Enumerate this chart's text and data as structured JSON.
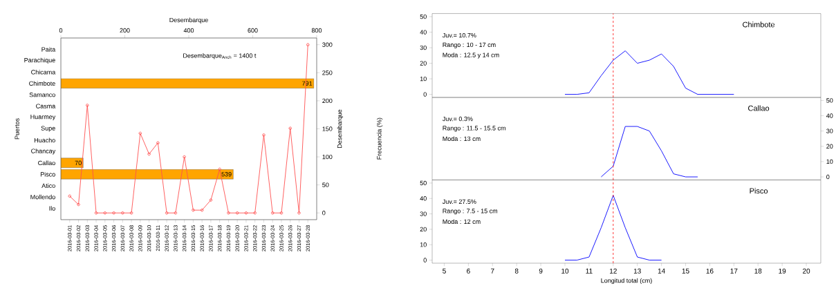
{
  "chart_data": [
    {
      "type": "bar",
      "orientation": "horizontal",
      "xlabel": "Desembarque",
      "ylabel": "Puertos",
      "categories": [
        "Paita",
        "Parachique",
        "Chicama",
        "Chimbote",
        "Samanco",
        "Casma",
        "Huarmey",
        "Supe",
        "Huacho",
        "Chancay",
        "Callao",
        "Pisco",
        "Atico",
        "Mollendo",
        "Ilo"
      ],
      "values": [
        null,
        null,
        null,
        791,
        null,
        null,
        null,
        null,
        null,
        null,
        70,
        539,
        null,
        null,
        null
      ],
      "color": "#ffa500",
      "data_labels": true,
      "xlim": [
        0,
        800
      ],
      "xticks": [
        0,
        200,
        400,
        600,
        800
      ],
      "annotations": [
        "Desembarque$_{Anch}$ = 1400 t"
      ]
    },
    {
      "type": "line",
      "y2label": "Desembarque",
      "categories": [
        "2016-03-01",
        "2016-03-02",
        "2016-03-03",
        "2016-03-04",
        "2016-03-05",
        "2016-03-06",
        "2016-03-07",
        "2016-03-08",
        "2016-03-09",
        "2016-03-10",
        "2016-03-11",
        "2016-03-12",
        "2016-03-13",
        "2016-03-14",
        "2016-03-15",
        "2016-03-16",
        "2016-03-17",
        "2016-03-18",
        "2016-03-19",
        "2016-03-20",
        "2016-03-21",
        "2016-03-22",
        "2016-03-23",
        "2016-03-24",
        "2016-03-25",
        "2016-03-26",
        "2016-03-27",
        "2016-03-28"
      ],
      "series": [
        {
          "color": "#ff5050",
          "axis": "y2",
          "values": [
            30,
            15,
            192,
            0,
            0,
            0,
            0,
            0,
            142,
            105,
            125,
            0,
            0,
            100,
            5,
            5,
            23,
            78,
            0,
            0,
            0,
            0,
            139,
            0,
            0,
            151,
            0,
            300
          ]
        }
      ],
      "y2lim": [
        -12,
        312
      ],
      "y2ticks": [
        0,
        50,
        100,
        150,
        200,
        250,
        300
      ],
      "marker": "circle"
    },
    {
      "type": "line",
      "title": "Chimbote",
      "x": [
        10,
        10.5,
        11,
        11.5,
        12,
        12.5,
        13,
        13.5,
        14,
        14.5,
        15,
        15.5,
        16,
        16.5,
        17
      ],
      "series": [
        {
          "color": "#0000ff",
          "values": [
            0,
            0,
            1,
            12,
            22,
            28,
            20,
            22,
            26,
            18,
            4,
            0,
            0,
            0,
            0
          ]
        }
      ],
      "xlim": [
        4.5,
        20.6
      ],
      "ylim": [
        -2,
        52
      ],
      "yticks": [
        0,
        10,
        20,
        30,
        40,
        50
      ],
      "tick_labels": "y",
      "ref_lines": [
        {
          "axis": "x",
          "value": 12,
          "color": "#ff0000",
          "line_style": "dashed"
        }
      ],
      "annotations": [
        "Juv.= 10.7%",
        "Rango : 10 - 17 cm",
        "Moda : 12.5 y 14 cm"
      ]
    },
    {
      "type": "line",
      "title": "Callao",
      "ylabel": "Frecuencia (%)",
      "x": [
        11.5,
        12,
        12.5,
        13,
        13.5,
        14,
        14.5,
        15,
        15.5
      ],
      "series": [
        {
          "color": "#0000ff",
          "axis": "y2",
          "values": [
            0,
            7,
            33,
            33,
            30,
            17,
            2,
            0,
            0
          ]
        }
      ],
      "xlim": [
        4.5,
        20.6
      ],
      "y2lim": [
        -2,
        52
      ],
      "y2ticks": [
        0,
        10,
        20,
        30,
        40,
        50
      ],
      "tick_labels": "y",
      "ref_lines": [
        {
          "axis": "x",
          "value": 12,
          "color": "#ff0000",
          "line_style": "dashed"
        }
      ],
      "annotations": [
        "Juv.= 0.3%",
        "Rango : 11.5 - 15.5 cm",
        "Moda : 13 cm"
      ]
    },
    {
      "type": "line",
      "title": "Pisco",
      "xlabel": "Longitud total (cm)",
      "x": [
        10,
        10.5,
        11,
        11.5,
        12,
        12.5,
        13,
        13.5,
        14
      ],
      "series": [
        {
          "color": "#0000ff",
          "values": [
            0,
            0,
            2,
            21,
            42,
            21,
            2,
            0,
            0
          ]
        }
      ],
      "xlim": [
        4.5,
        20.6
      ],
      "xticks": [
        5,
        6,
        7,
        8,
        9,
        10,
        11,
        12,
        13,
        14,
        15,
        16,
        17,
        18,
        19,
        20
      ],
      "ylim": [
        -2,
        52
      ],
      "yticks": [
        0,
        10,
        20,
        30,
        40,
        50
      ],
      "ref_lines": [
        {
          "axis": "x",
          "value": 12,
          "color": "#ff0000",
          "line_style": "dashed"
        }
      ],
      "annotations": [
        "Juv.= 27.5%",
        "Rango : 7.5 - 15 cm",
        "Moda : 12 cm"
      ]
    }
  ]
}
